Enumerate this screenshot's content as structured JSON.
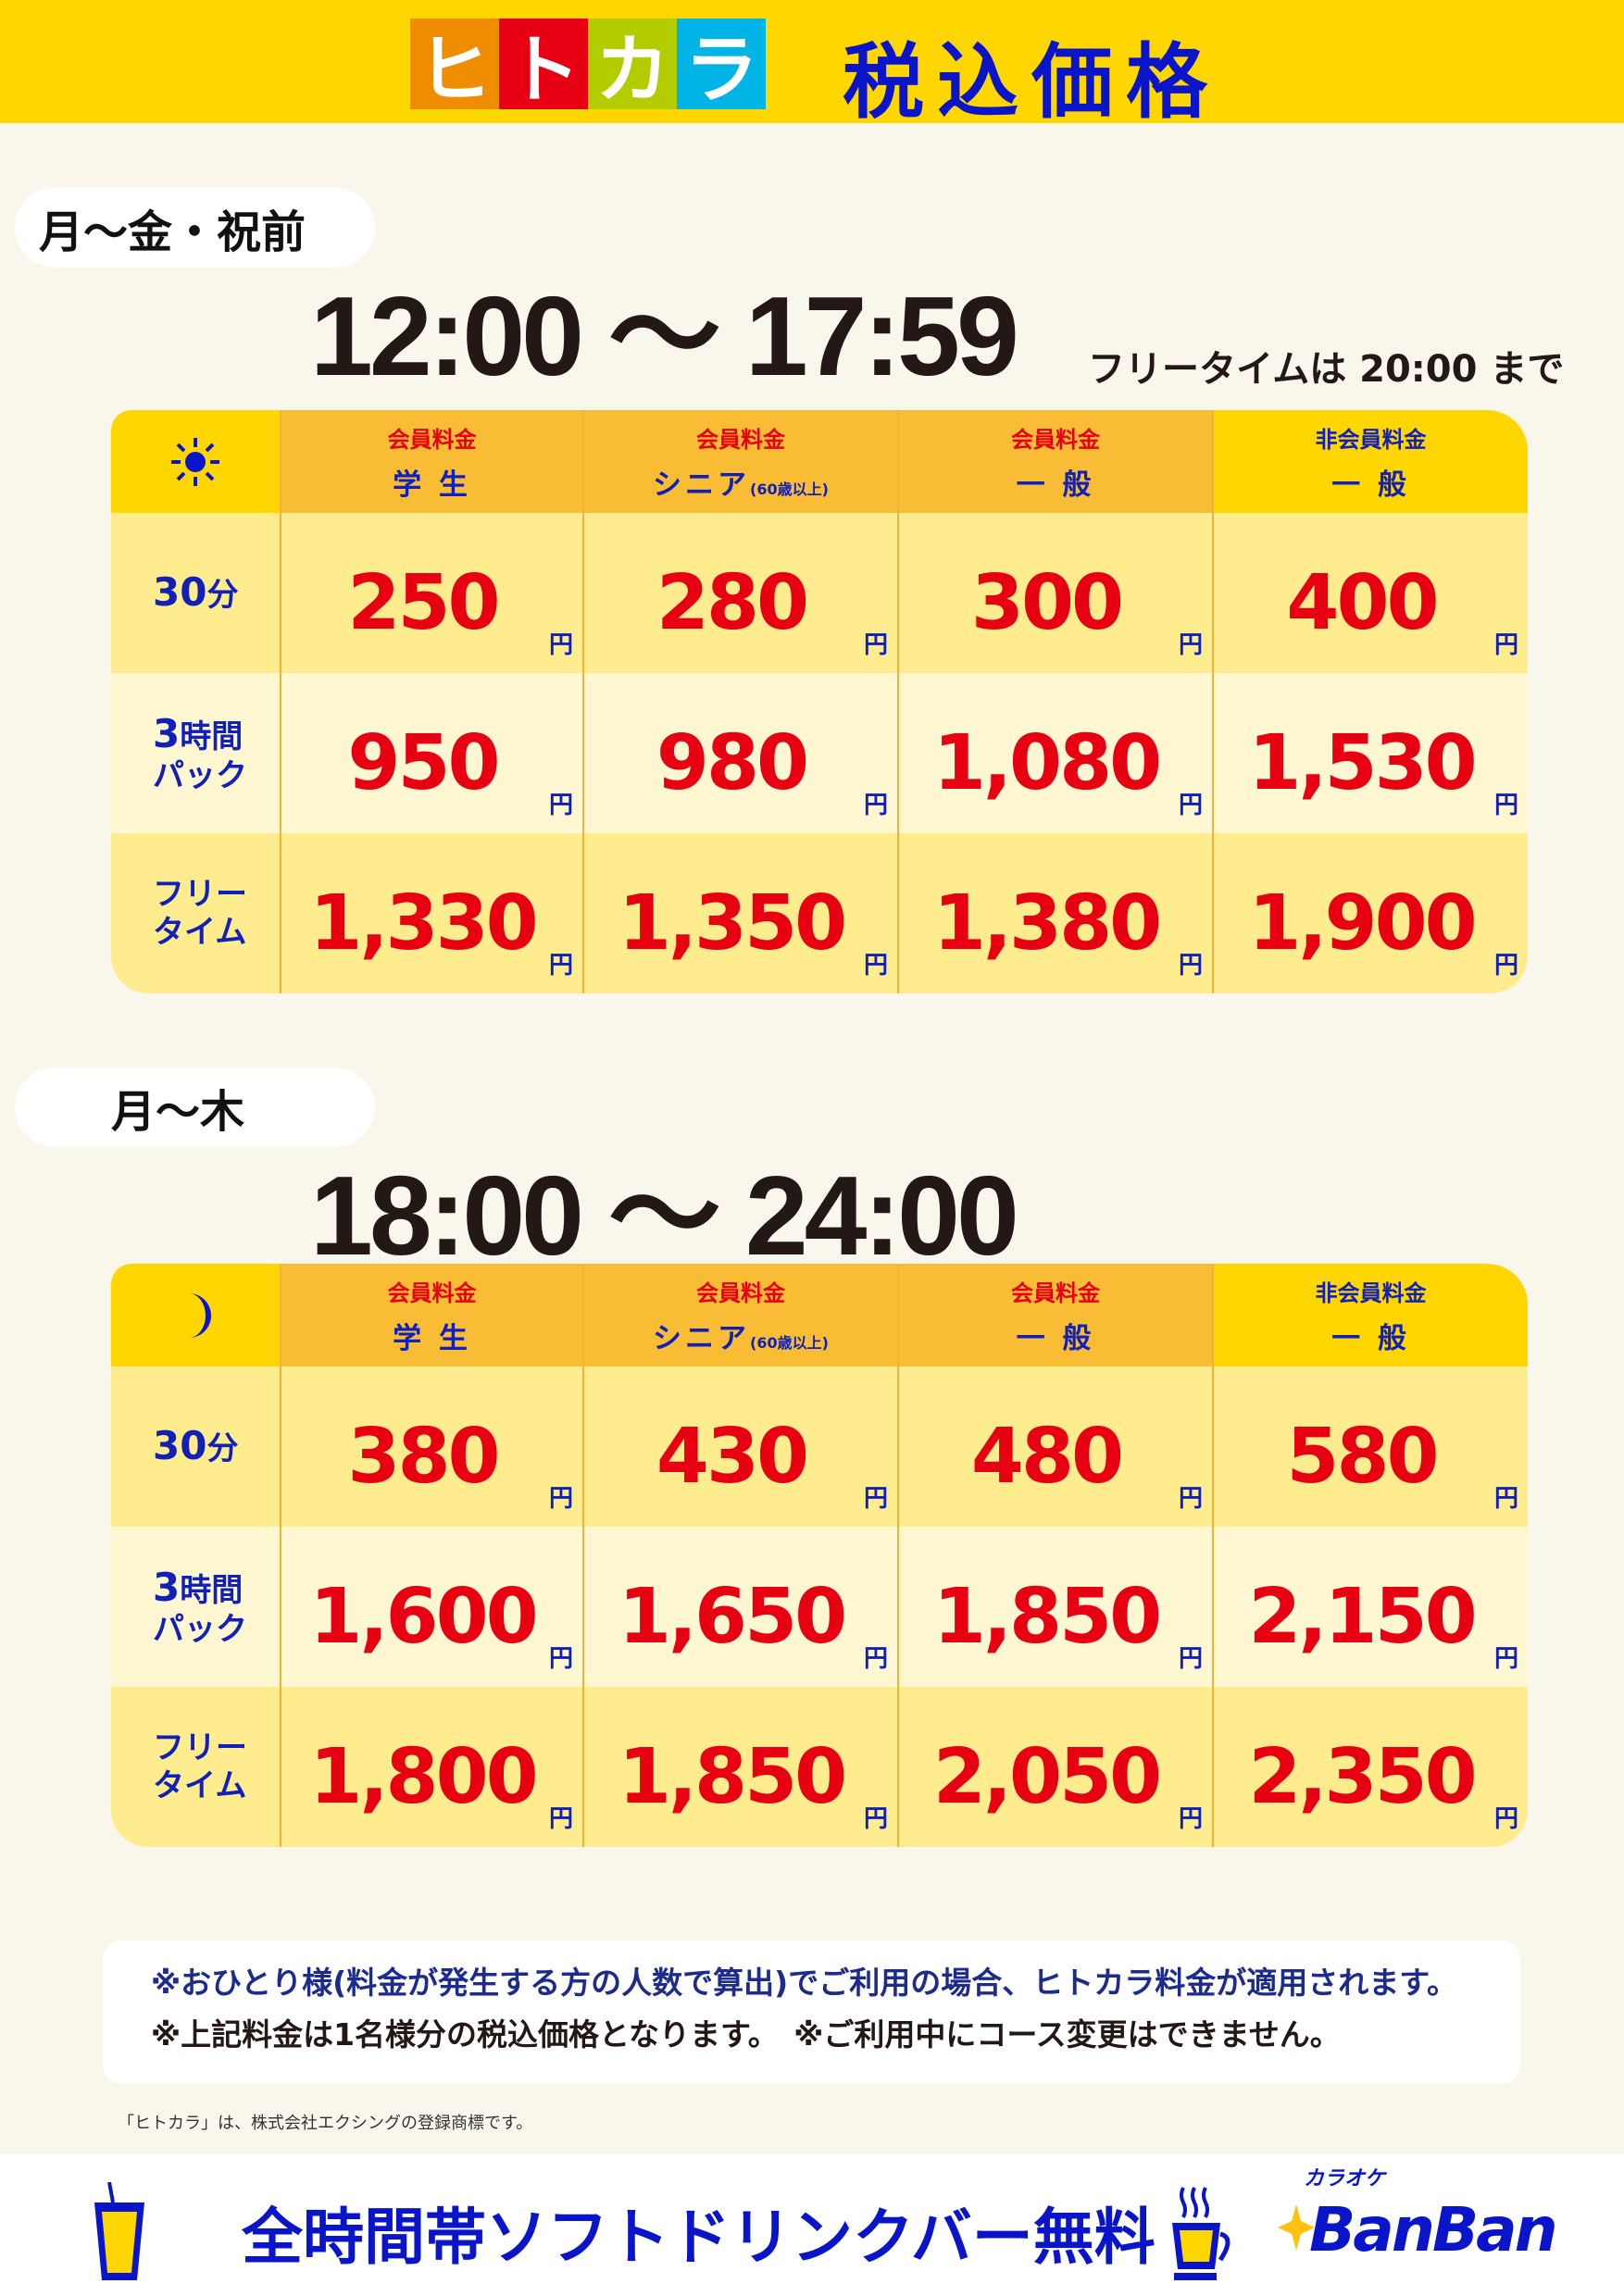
{
  "header": {
    "logo_chars": [
      "ヒ",
      "ト",
      "カ",
      "ラ"
    ],
    "logo_colors": [
      "#F08C00",
      "#E60012",
      "#B3CC00",
      "#00B4E6"
    ],
    "title": "税込価格"
  },
  "colors": {
    "header_bg": "#FFD600",
    "price": "#E60012",
    "label": "#1020B8"
  },
  "sections": [
    {
      "day_label": "月〜金・祝前",
      "time_range": "12:00 〜 17:59",
      "time_note": "フリータイムは 20:00 まで",
      "icon": "sun-icon",
      "columns": [
        {
          "group": "会員料金",
          "type": "学 生",
          "suffix": ""
        },
        {
          "group": "会員料金",
          "type": "シニア",
          "suffix": "(60歳以上)"
        },
        {
          "group": "会員料金",
          "type": "一 般",
          "suffix": ""
        },
        {
          "group": "非会員料金",
          "type": "一 般",
          "suffix": ""
        }
      ],
      "rows": [
        {
          "label": [
            "30",
            "分"
          ],
          "prices": [
            "250",
            "280",
            "300",
            "400"
          ]
        },
        {
          "label": [
            "3",
            "時間",
            "パック"
          ],
          "prices": [
            "950",
            "980",
            "1,080",
            "1,530"
          ]
        },
        {
          "label": [
            "",
            "フリー",
            "タイム"
          ],
          "prices": [
            "1,330",
            "1,350",
            "1,380",
            "1,900"
          ]
        }
      ]
    },
    {
      "day_label": "月〜木",
      "time_range": "18:00 〜 24:00",
      "time_note": "",
      "icon": "moon-icon",
      "columns": [
        {
          "group": "会員料金",
          "type": "学 生",
          "suffix": ""
        },
        {
          "group": "会員料金",
          "type": "シニア",
          "suffix": "(60歳以上)"
        },
        {
          "group": "会員料金",
          "type": "一 般",
          "suffix": ""
        },
        {
          "group": "非会員料金",
          "type": "一 般",
          "suffix": ""
        }
      ],
      "rows": [
        {
          "label": [
            "30",
            "分"
          ],
          "prices": [
            "380",
            "430",
            "480",
            "580"
          ]
        },
        {
          "label": [
            "3",
            "時間",
            "パック"
          ],
          "prices": [
            "1,600",
            "1,650",
            "1,850",
            "2,150"
          ]
        },
        {
          "label": [
            "",
            "フリー",
            "タイム"
          ],
          "prices": [
            "1,800",
            "1,850",
            "2,050",
            "2,350"
          ]
        }
      ]
    }
  ],
  "yen": "円",
  "notes": [
    "※おひとり様(料金が発生する方の人数で算出)でご利用の場合、ヒトカラ料金が適用されます。",
    "※上記料金は1名様分の税込価格となります。　※ご利用中にコース変更はできません。"
  ],
  "trademark": "「ヒトカラ」は、株式会社エクシングの登録商標です。",
  "footer": {
    "text": "全時間帯ソフトドリンクバー無料",
    "brand_small": "カラオケ",
    "brand": "BanBan"
  }
}
